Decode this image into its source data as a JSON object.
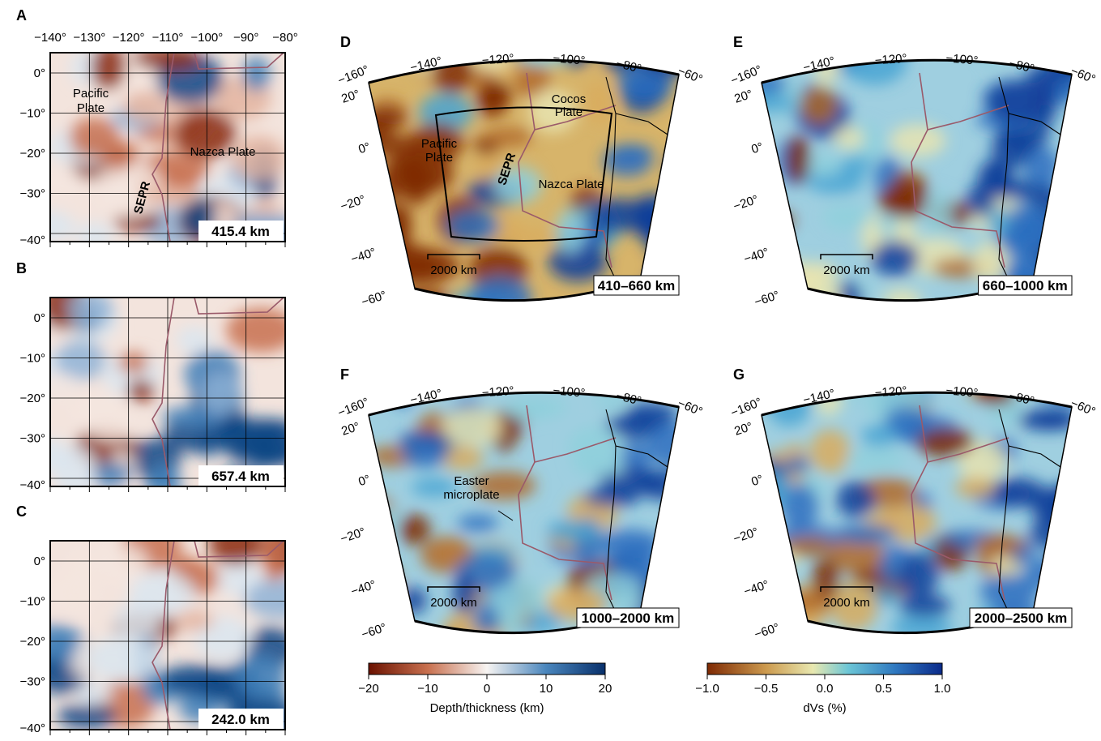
{
  "panels_left": [
    {
      "letter": "A",
      "lon_labels": [
        "−140°",
        "−130°",
        "−120°",
        "−110°",
        "−100°",
        "−90°",
        "−80°"
      ],
      "lat_labels": [
        "0°",
        "−10°",
        "−20°",
        "−30°",
        "−40°"
      ],
      "depth": "415.4 km",
      "annotations": [
        {
          "lines": [
            "Pacific",
            "Plate"
          ]
        },
        {
          "lines": [
            "SEPR"
          ]
        },
        {
          "lines": [
            "Nazca Plate"
          ]
        }
      ]
    },
    {
      "letter": "B",
      "lat_labels": [
        "0°",
        "−10°",
        "−20°",
        "−30°",
        "−40°"
      ],
      "depth": "657.4 km"
    },
    {
      "letter": "C",
      "lat_labels": [
        "0°",
        "−10°",
        "−20°",
        "−30°",
        "−40°"
      ],
      "depth": "242.0 km"
    }
  ],
  "panels_fan": [
    {
      "letter": "D",
      "lon_labels": [
        "−160°",
        "−140°",
        "−120°",
        "−100°",
        "−80°",
        "−60°"
      ],
      "lat_labels": [
        "20°",
        "0°",
        "−20°",
        "−40°",
        "−60°"
      ],
      "scale_bar": "2000 km",
      "depth": "410–660 km",
      "annotations": [
        {
          "lines": [
            "Pacific",
            "Plate"
          ]
        },
        {
          "lines": [
            "SEPR"
          ]
        },
        {
          "lines": [
            "Nazca Plate"
          ]
        },
        {
          "lines": [
            "Cocos",
            "Plate"
          ]
        }
      ]
    },
    {
      "letter": "E",
      "lon_labels": [
        "−160°",
        "−140°",
        "−120°",
        "−100°",
        "−80°",
        "−60°"
      ],
      "lat_labels": [
        "20°",
        "0°",
        "−20°",
        "−40°",
        "−60°"
      ],
      "scale_bar": "2000 km",
      "depth": "660–1000 km"
    },
    {
      "letter": "F",
      "lon_labels": [
        "−160°",
        "−140°",
        "−120°",
        "−100°",
        "−80°",
        "−60°"
      ],
      "lat_labels": [
        "20°",
        "0°",
        "−20°",
        "−40°",
        "−60°"
      ],
      "scale_bar": "2000 km",
      "depth": "1000–2000 km",
      "annotations": [
        {
          "lines": [
            "Easter",
            "microplate"
          ]
        }
      ]
    },
    {
      "letter": "G",
      "lon_labels": [
        "−160°",
        "−140°",
        "−120°",
        "−100°",
        "−80°",
        "−60°"
      ],
      "lat_labels": [
        "20°",
        "0°",
        "−20°",
        "−40°",
        "−60°"
      ],
      "scale_bar": "2000 km",
      "depth": "2000–2500 km"
    }
  ],
  "colorbars": [
    {
      "ticks": [
        "−20",
        "−10",
        "0",
        "10",
        "20"
      ],
      "label": "Depth/thickness (km)"
    },
    {
      "ticks": [
        "−1.0",
        "−0.5",
        "0.0",
        "0.5",
        "1.0"
      ],
      "label": "dVs (%)"
    }
  ]
}
